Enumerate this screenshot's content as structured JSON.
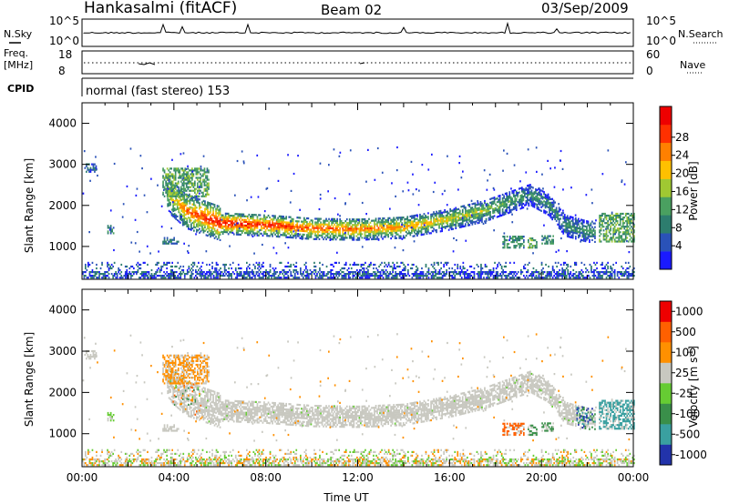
{
  "header": {
    "station": "Hankasalmi (fitACF)",
    "beam": "Beam 02",
    "date": "03/Sep/2009"
  },
  "strip_nsky": {
    "left_label": "N.Sky",
    "left_ticks": [
      "10^5",
      "10^0"
    ],
    "right_ticks": [
      "10^5",
      "10^0"
    ],
    "right_label": "N.Search"
  },
  "strip_freq": {
    "left_label_1": "Freq.",
    "left_label_2": "[MHz]",
    "left_ticks": [
      "18",
      "8"
    ],
    "right_ticks": [
      "60",
      "0"
    ],
    "right_label": "Nave"
  },
  "cpid": {
    "label": "CPID",
    "text": "normal (fast stereo) 153"
  },
  "chart_data": [
    {
      "type": "heatmap",
      "title": "",
      "xlabel": "",
      "ylabel": "Slant Range [km]",
      "yticks": [
        "1000",
        "2000",
        "3000",
        "4000"
      ],
      "ylim": [
        200,
        4500
      ],
      "xlim": [
        0,
        24
      ],
      "colorbar": {
        "label": "Power [dB]",
        "ticks": [
          "4",
          "8",
          "12",
          "16",
          "20",
          "24",
          "28"
        ],
        "colors": [
          "#1a1aff",
          "#2a52b8",
          "#2d7d6e",
          "#4aa060",
          "#a0c832",
          "#ffc000",
          "#ff8000",
          "#ff3000",
          "#ee0000"
        ]
      },
      "band": {
        "time_hours": [
          3.7,
          4.5,
          6,
          8,
          10,
          12,
          14,
          16,
          17.5,
          18.5,
          19.5,
          20.3,
          21,
          22
        ],
        "center_km": [
          2250,
          1850,
          1550,
          1500,
          1420,
          1400,
          1450,
          1650,
          1850,
          2050,
          2250,
          2000,
          1500,
          1350
        ],
        "peak_power_db": [
          16,
          24,
          30,
          28,
          26,
          24,
          22,
          18,
          16,
          12,
          10,
          10,
          10,
          12
        ]
      }
    },
    {
      "type": "heatmap",
      "title": "",
      "xlabel": "Time UT",
      "ylabel": "Slant Range [km]",
      "xticks": [
        "00:00",
        "04:00",
        "08:00",
        "12:00",
        "16:00",
        "20:00",
        "00:00"
      ],
      "yticks": [
        "1000",
        "2000",
        "3000",
        "4000"
      ],
      "ylim": [
        200,
        4500
      ],
      "xlim": [
        0,
        24
      ],
      "colorbar": {
        "label": "Velocity [m s^-1]",
        "ticks": [
          "1000",
          "500",
          "100",
          "25",
          "-25",
          "-100",
          "-500",
          "-1000"
        ],
        "colors": [
          "#2233aa",
          "#3aa0a0",
          "#3a8f4a",
          "#66cc33",
          "#c8c8c0",
          "#ff9000",
          "#ff6000",
          "#ee0000"
        ]
      }
    }
  ]
}
